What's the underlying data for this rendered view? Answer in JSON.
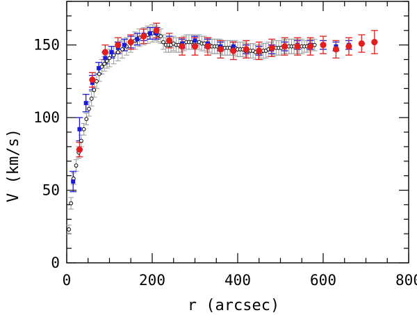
{
  "chart_data": {
    "type": "scatter",
    "title": "",
    "xlabel": "r (arcsec)",
    "ylabel": "V (km/s)",
    "xlim": [
      0,
      800
    ],
    "ylim": [
      0,
      180
    ],
    "x_major_ticks": [
      0,
      200,
      400,
      600,
      800
    ],
    "x_minor_step": 50,
    "y_major_ticks": [
      0,
      50,
      100,
      150
    ],
    "y_minor_step": 10,
    "grid": false,
    "legend": null,
    "colors": {
      "gray": "#999999",
      "blue": "#1a1adc",
      "red": "#e41e1e",
      "black": "#000000"
    },
    "series": [
      {
        "name": "open black circles (gray error bars)",
        "marker": "open-circle",
        "color": "#000000",
        "errcolor": "#999999",
        "x": [
          5,
          10,
          16,
          22,
          28,
          34,
          40,
          46,
          52,
          58,
          64,
          70,
          76,
          82,
          88,
          94,
          100,
          110,
          120,
          130,
          140,
          150,
          160,
          170,
          180,
          190,
          200,
          208,
          214,
          220,
          226,
          232,
          238,
          244,
          250,
          256,
          262,
          268,
          274,
          280,
          286,
          292,
          298,
          304,
          310,
          316,
          322,
          328,
          334,
          340,
          346,
          352,
          358,
          364,
          370,
          376,
          382,
          388,
          394,
          400,
          406,
          412,
          418,
          424,
          430,
          436,
          442,
          448,
          454,
          460,
          466,
          472,
          478,
          484,
          490,
          496,
          502,
          508,
          514,
          520,
          526,
          532,
          538,
          544,
          550,
          556,
          562,
          568,
          574,
          580
        ],
        "y": [
          23,
          41,
          58,
          67,
          76,
          84,
          92,
          99,
          106,
          113,
          119,
          125,
          130,
          135,
          137,
          139,
          141,
          143,
          145,
          147,
          149,
          151,
          153,
          155,
          156,
          157,
          158,
          158,
          157,
          156,
          152,
          150,
          150,
          150,
          151,
          150,
          150,
          150,
          151,
          152,
          152,
          152,
          152,
          152,
          152,
          151,
          151,
          150,
          150,
          149,
          149,
          149,
          149,
          148,
          148,
          148,
          148,
          148,
          148,
          147,
          147,
          147,
          146,
          146,
          146,
          146,
          145,
          145,
          145,
          146,
          146,
          147,
          147,
          148,
          148,
          148,
          148,
          149,
          149,
          149,
          149,
          149,
          149,
          149,
          149,
          149,
          149,
          150,
          150,
          150
        ],
        "err": [
          3,
          4,
          4,
          4,
          4,
          4,
          4,
          4,
          5,
          5,
          5,
          5,
          5,
          5,
          5,
          5,
          6,
          6,
          6,
          6,
          6,
          6,
          6,
          6,
          6,
          6,
          6,
          5,
          5,
          5,
          5,
          5,
          5,
          5,
          5,
          5,
          5,
          5,
          5,
          5,
          5,
          5,
          5,
          5,
          5,
          5,
          5,
          5,
          5,
          5,
          5,
          5,
          5,
          5,
          5,
          5,
          5,
          5,
          5,
          5,
          5,
          5,
          5,
          5,
          5,
          5,
          5,
          5,
          5,
          5,
          5,
          5,
          5,
          5,
          5,
          5,
          5,
          5,
          5,
          5,
          5,
          5,
          5,
          5,
          5,
          4,
          4,
          4,
          4,
          4
        ]
      },
      {
        "name": "blue squares",
        "marker": "filled-square",
        "color": "#1a1adc",
        "x": [
          15,
          30,
          45,
          60,
          75,
          90,
          105,
          120,
          135,
          150,
          165,
          180,
          195,
          210,
          240,
          270,
          300,
          330,
          360,
          390,
          420,
          450,
          480,
          510,
          540,
          570,
          600,
          630,
          660
        ],
        "y": [
          56,
          92,
          110,
          124,
          134,
          141,
          145,
          148,
          150,
          152,
          154,
          157,
          158,
          158,
          153,
          151,
          153,
          151,
          149,
          149,
          147,
          146,
          147,
          149,
          150,
          150,
          150,
          149,
          150
        ],
        "err": [
          7,
          8,
          6,
          5,
          4,
          4,
          4,
          4,
          4,
          4,
          4,
          4,
          4,
          4,
          3,
          3,
          3,
          3,
          3,
          3,
          3,
          3,
          3,
          3,
          3,
          3,
          3,
          3,
          3
        ]
      },
      {
        "name": "red filled circles",
        "marker": "filled-circle",
        "color": "#e41e1e",
        "x": [
          30,
          60,
          90,
          120,
          150,
          180,
          210,
          240,
          270,
          300,
          330,
          360,
          390,
          420,
          450,
          480,
          510,
          540,
          570,
          600,
          630,
          660,
          690,
          720
        ],
        "y": [
          78,
          126,
          145,
          150,
          152,
          156,
          160,
          153,
          149,
          149,
          149,
          147,
          146,
          147,
          146,
          148,
          149,
          149,
          149,
          150,
          147,
          149,
          151,
          152
        ],
        "err": [
          5,
          5,
          5,
          5,
          5,
          5,
          5,
          5,
          6,
          6,
          6,
          6,
          6,
          6,
          6,
          6,
          6,
          6,
          6,
          6,
          6,
          6,
          6,
          8
        ]
      }
    ]
  }
}
